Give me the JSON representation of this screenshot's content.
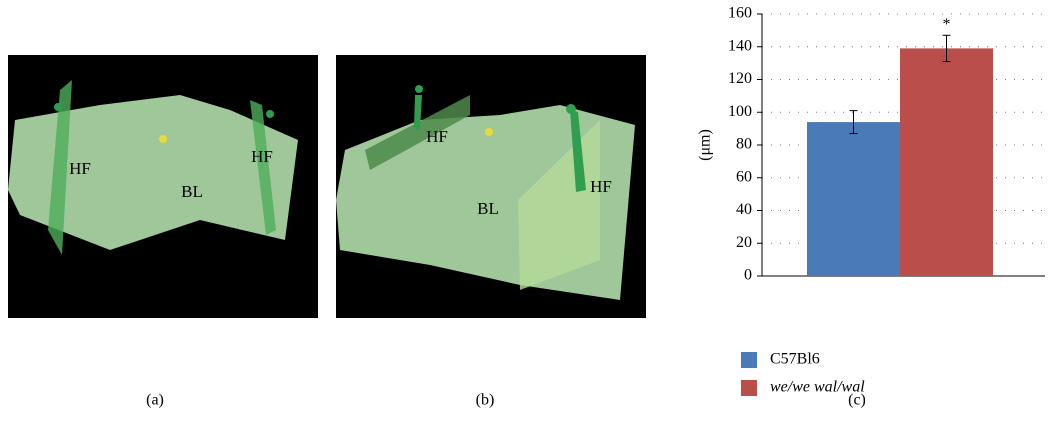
{
  "panels": [
    {
      "label": "(a)",
      "annotations": [
        "HF",
        "BL",
        "HF"
      ]
    },
    {
      "label": "(b)",
      "annotations": [
        "HF",
        "BL",
        "HF"
      ]
    },
    {
      "label": "(c)"
    }
  ],
  "chart_data": {
    "type": "bar",
    "ylabel": "(μm)",
    "series": [
      {
        "name": "C57Bl6",
        "color": "#4a7ab8",
        "values": [
          94
        ],
        "errors": [
          7
        ]
      },
      {
        "name": "we/we wal/wal",
        "color": "#b94e4b",
        "values": [
          139
        ],
        "errors": [
          8
        ],
        "significance": "*"
      }
    ],
    "ylim": [
      0,
      160
    ],
    "yticks": [
      0,
      20,
      40,
      60,
      80,
      100,
      120,
      140,
      160
    ],
    "grid": true
  }
}
